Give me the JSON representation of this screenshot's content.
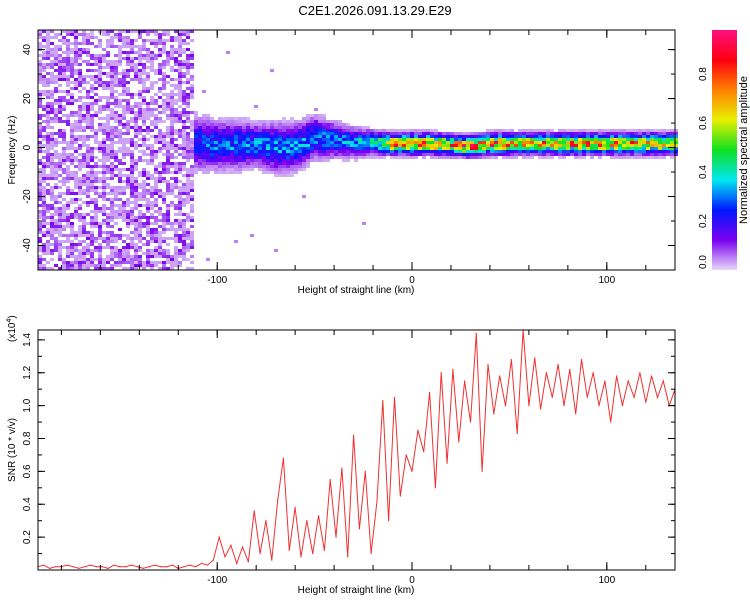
{
  "chart_data": [
    {
      "type": "heatmap",
      "title": "C2E1.2026.091.13.29.E29",
      "xlabel": "Height of straight line (km)",
      "ylabel": "Frequency (Hz)",
      "xlim": [
        -192,
        135
      ],
      "ylim": [
        -50,
        48
      ],
      "xticks": [
        {
          "v": -100,
          "label": "-100"
        },
        {
          "v": 0,
          "label": "0"
        },
        {
          "v": 100,
          "label": "100"
        }
      ],
      "yticks": [
        {
          "v": 40,
          "label": "40"
        },
        {
          "v": 20,
          "label": "20"
        },
        {
          "v": 0,
          "label": "0"
        },
        {
          "v": -20,
          "label": "-20"
        },
        {
          "v": -40,
          "label": "-40"
        }
      ],
      "colorbar": {
        "label": "Normalized spectral amplitude",
        "range": [
          0,
          0.98
        ],
        "ticks": [
          {
            "v": 0.0,
            "label": "0.0"
          },
          {
            "v": 0.2,
            "label": "0.2"
          },
          {
            "v": 0.4,
            "label": "0.4"
          },
          {
            "v": 0.6,
            "label": "0.6"
          },
          {
            "v": 0.8,
            "label": "0.8"
          }
        ],
        "colormap": [
          "#e8d8f8",
          "#7a00f0",
          "#0018ff",
          "#00e8f0",
          "#10e020",
          "#e8f000",
          "#ff8000",
          "#ff0010",
          "#ff1080"
        ]
      },
      "noise_region": {
        "x_max": -112,
        "amplitude": 0.15
      },
      "ridge_columns": [
        "x_km",
        "center_hz",
        "halfwidth_hz",
        "peak_amplitude"
      ],
      "ridge": [
        [
          -112,
          2,
          9,
          0.3
        ],
        [
          -100,
          1,
          8,
          0.35
        ],
        [
          -90,
          1,
          8,
          0.35
        ],
        [
          -80,
          1,
          7,
          0.38
        ],
        [
          -70,
          0,
          8,
          0.38
        ],
        [
          -60,
          0,
          8,
          0.36
        ],
        [
          -50,
          4,
          7,
          0.38
        ],
        [
          -40,
          3,
          6,
          0.35
        ],
        [
          -30,
          2,
          5,
          0.38
        ],
        [
          -20,
          2,
          4,
          0.5
        ],
        [
          -10,
          1.5,
          3.5,
          0.85
        ],
        [
          0,
          1.5,
          3.5,
          0.9
        ],
        [
          10,
          1.5,
          3.5,
          0.9
        ],
        [
          20,
          1,
          3.5,
          0.8
        ],
        [
          30,
          0.5,
          3.5,
          0.92
        ],
        [
          40,
          1.5,
          3.5,
          0.9
        ],
        [
          60,
          1.5,
          3.5,
          0.8
        ],
        [
          80,
          1.5,
          3.5,
          0.85
        ],
        [
          100,
          1.5,
          3.5,
          0.85
        ],
        [
          120,
          1.5,
          3.5,
          0.82
        ],
        [
          135,
          1.5,
          3.5,
          0.8
        ]
      ]
    },
    {
      "type": "line",
      "xlabel": "Height of straight line (km)",
      "ylabel": "SNR (10 * v/v)",
      "yscale_label": "(x10",
      "yscale_exp": "4",
      "yscale_close": ")",
      "xlim": [
        -192,
        135
      ],
      "ylim": [
        0,
        1.46
      ],
      "color": "#f03030",
      "xticks": [
        {
          "v": -100,
          "label": "-100"
        },
        {
          "v": 0,
          "label": "0"
        },
        {
          "v": 100,
          "label": "100"
        }
      ],
      "yticks": [
        {
          "v": 0.2,
          "label": "0.2"
        },
        {
          "v": 0.4,
          "label": "0.4"
        },
        {
          "v": 0.6,
          "label": "0.6"
        },
        {
          "v": 0.8,
          "label": "0.8"
        },
        {
          "v": 1.0,
          "label": "1.0"
        },
        {
          "v": 1.2,
          "label": "1.2"
        },
        {
          "v": 1.4,
          "label": "1.4"
        }
      ],
      "points": [
        [
          -192,
          0.02
        ],
        [
          -189,
          0.03
        ],
        [
          -186,
          0.01
        ],
        [
          -183,
          0.02
        ],
        [
          -180,
          0.02
        ],
        [
          -177,
          0.03
        ],
        [
          -174,
          0.02
        ],
        [
          -171,
          0.01
        ],
        [
          -168,
          0.02
        ],
        [
          -165,
          0.03
        ],
        [
          -162,
          0.02
        ],
        [
          -159,
          0.02
        ],
        [
          -156,
          0.01
        ],
        [
          -153,
          0.03
        ],
        [
          -150,
          0.02
        ],
        [
          -147,
          0.02
        ],
        [
          -144,
          0.03
        ],
        [
          -141,
          0.02
        ],
        [
          -138,
          0.01
        ],
        [
          -135,
          0.02
        ],
        [
          -132,
          0.03
        ],
        [
          -129,
          0.02
        ],
        [
          -126,
          0.02
        ],
        [
          -123,
          0.03
        ],
        [
          -120,
          0.01
        ],
        [
          -117,
          0.02
        ],
        [
          -114,
          0.03
        ],
        [
          -111,
          0.02
        ],
        [
          -108,
          0.04
        ],
        [
          -105,
          0.03
        ],
        [
          -102,
          0.06
        ],
        [
          -99,
          0.2
        ],
        [
          -96,
          0.08
        ],
        [
          -93,
          0.15
        ],
        [
          -90,
          0.04
        ],
        [
          -87,
          0.14
        ],
        [
          -84,
          0.05
        ],
        [
          -81,
          0.36
        ],
        [
          -78,
          0.1
        ],
        [
          -75,
          0.3
        ],
        [
          -72,
          0.06
        ],
        [
          -69,
          0.42
        ],
        [
          -66,
          0.68
        ],
        [
          -63,
          0.12
        ],
        [
          -60,
          0.38
        ],
        [
          -57,
          0.08
        ],
        [
          -54,
          0.3
        ],
        [
          -51,
          0.1
        ],
        [
          -48,
          0.33
        ],
        [
          -45,
          0.12
        ],
        [
          -42,
          0.55
        ],
        [
          -39,
          0.2
        ],
        [
          -36,
          0.62
        ],
        [
          -33,
          0.08
        ],
        [
          -30,
          0.82
        ],
        [
          -27,
          0.25
        ],
        [
          -24,
          0.6
        ],
        [
          -21,
          0.1
        ],
        [
          -18,
          0.42
        ],
        [
          -15,
          1.03
        ],
        [
          -12,
          0.3
        ],
        [
          -9,
          1.05
        ],
        [
          -6,
          0.45
        ],
        [
          -3,
          0.7
        ],
        [
          0,
          0.6
        ],
        [
          3,
          0.85
        ],
        [
          6,
          0.72
        ],
        [
          9,
          1.08
        ],
        [
          12,
          0.5
        ],
        [
          15,
          1.2
        ],
        [
          18,
          0.65
        ],
        [
          21,
          1.22
        ],
        [
          24,
          0.78
        ],
        [
          27,
          1.15
        ],
        [
          30,
          0.9
        ],
        [
          33,
          1.44
        ],
        [
          36,
          0.6
        ],
        [
          39,
          1.25
        ],
        [
          42,
          0.95
        ],
        [
          45,
          1.18
        ],
        [
          48,
          1.0
        ],
        [
          51,
          1.28
        ],
        [
          54,
          0.83
        ],
        [
          57,
          1.46
        ],
        [
          60,
          1.0
        ],
        [
          63,
          1.29
        ],
        [
          66,
          0.98
        ],
        [
          69,
          1.2
        ],
        [
          72,
          1.05
        ],
        [
          75,
          1.25
        ],
        [
          78,
          1.0
        ],
        [
          81,
          1.22
        ],
        [
          84,
          0.95
        ],
        [
          87,
          1.28
        ],
        [
          90,
          1.05
        ],
        [
          93,
          1.2
        ],
        [
          96,
          1.0
        ],
        [
          99,
          1.15
        ],
        [
          102,
          0.9
        ],
        [
          105,
          1.18
        ],
        [
          108,
          1.0
        ],
        [
          111,
          1.15
        ],
        [
          114,
          1.05
        ],
        [
          117,
          1.2
        ],
        [
          120,
          1.02
        ],
        [
          123,
          1.18
        ],
        [
          126,
          1.05
        ],
        [
          129,
          1.15
        ],
        [
          132,
          1.0
        ],
        [
          135,
          1.1
        ]
      ]
    }
  ]
}
